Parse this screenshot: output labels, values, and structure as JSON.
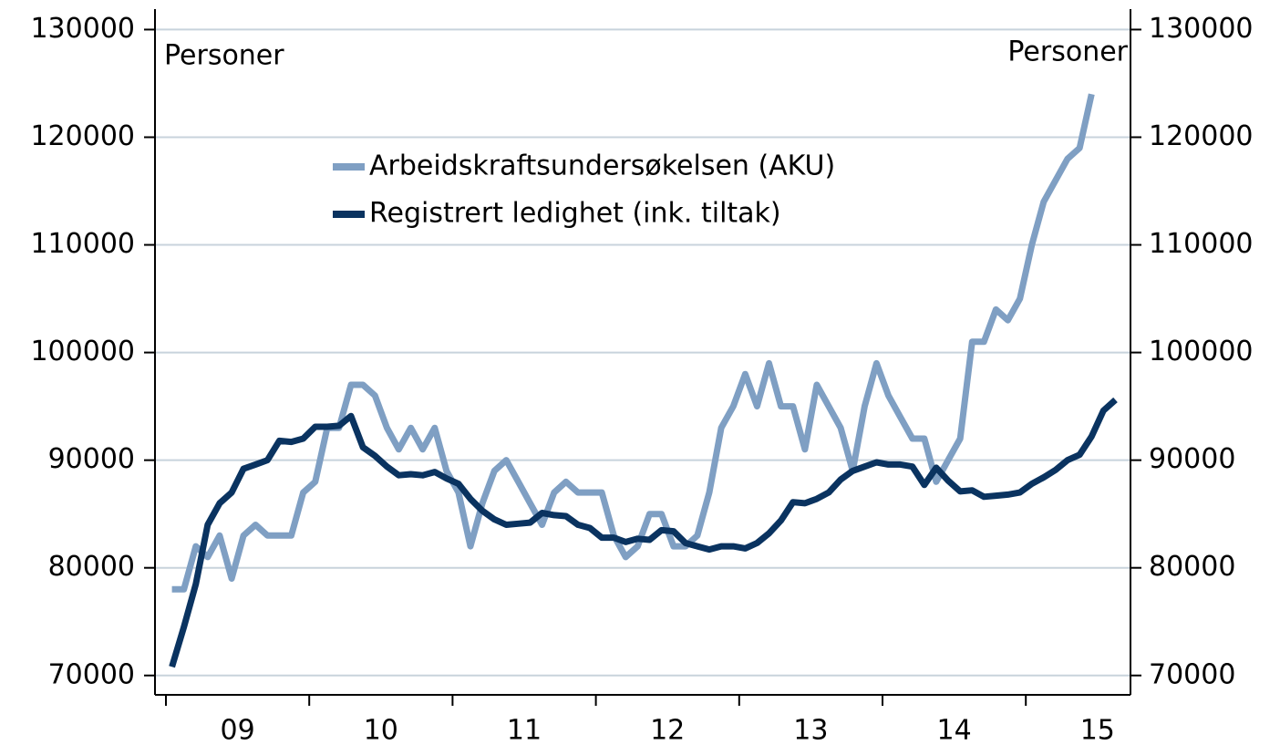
{
  "chart_data": {
    "type": "line",
    "y_label": "Personer",
    "y2_label": "Personer",
    "categories": [
      null,
      null,
      null,
      null,
      null,
      "09",
      null,
      null,
      null,
      null,
      null,
      null,
      null,
      null,
      null,
      null,
      null,
      "10",
      null,
      null,
      null,
      null,
      null,
      null,
      null,
      null,
      null,
      null,
      null,
      "11",
      null,
      null,
      null,
      null,
      null,
      null,
      null,
      null,
      null,
      null,
      null,
      "12",
      null,
      null,
      null,
      null,
      null,
      null,
      null,
      null,
      null,
      null,
      null,
      "13",
      null,
      null,
      null,
      null,
      null,
      null,
      null,
      null,
      null,
      null,
      null,
      "14",
      null,
      null,
      null,
      null,
      null,
      null,
      null,
      null,
      null,
      null,
      null,
      "15",
      null,
      null,
      null
    ],
    "series": [
      {
        "name": "Arbeidskraftsundersøkelsen (AKU)",
        "color": "#7f9fc3",
        "values": [
          78000,
          78000,
          82000,
          81000,
          83000,
          79000,
          83000,
          84000,
          83000,
          83000,
          83000,
          87000,
          88000,
          93000,
          93000,
          97000,
          97000,
          96000,
          93000,
          91000,
          93000,
          91000,
          93000,
          89000,
          87000,
          82000,
          86000,
          89000,
          90000,
          88000,
          86000,
          84000,
          87000,
          88000,
          87000,
          87000,
          87000,
          83000,
          81000,
          82000,
          85000,
          85000,
          82000,
          82000,
          83000,
          87000,
          93000,
          95000,
          98000,
          95000,
          99000,
          95000,
          95000,
          91000,
          97000,
          95000,
          93000,
          89000,
          95000,
          99000,
          96000,
          94000,
          92000,
          92000,
          88000,
          90000,
          92000,
          101000,
          101000,
          104000,
          103000,
          105000,
          110000,
          114000,
          116000,
          118000,
          119000,
          124000,
          null,
          null,
          null
        ]
      },
      {
        "name": "Registrert ledighet (ink. tiltak)",
        "color": "#0a3360",
        "values": [
          70800,
          74500,
          78500,
          84000,
          86000,
          87000,
          89200,
          89600,
          90000,
          91800,
          91700,
          92000,
          93100,
          93100,
          93200,
          94100,
          91200,
          90400,
          89400,
          88600,
          88700,
          88600,
          88900,
          88300,
          87800,
          86400,
          85300,
          84500,
          84000,
          84100,
          84200,
          85100,
          84900,
          84800,
          84000,
          83700,
          82800,
          82800,
          82400,
          82700,
          82600,
          83500,
          83400,
          82300,
          82000,
          81700,
          82000,
          82000,
          81800,
          82300,
          83200,
          84400,
          86100,
          86000,
          86400,
          87000,
          88200,
          89000,
          89400,
          89800,
          89600,
          89600,
          89400,
          87700,
          89300,
          88100,
          87100,
          87200,
          86600,
          86700,
          86800,
          87000,
          87800,
          88400,
          89100,
          90000,
          90500,
          92200,
          94600,
          95600,
          null
        ]
      }
    ],
    "ylim": [
      68200,
      131900
    ],
    "yticks": [
      70000,
      80000,
      90000,
      100000,
      110000,
      120000,
      130000
    ],
    "y2lim": [
      68200,
      131900
    ],
    "y2ticks": [
      70000,
      80000,
      90000,
      100000,
      110000,
      120000,
      130000
    ],
    "grid": true,
    "legend": "top"
  }
}
